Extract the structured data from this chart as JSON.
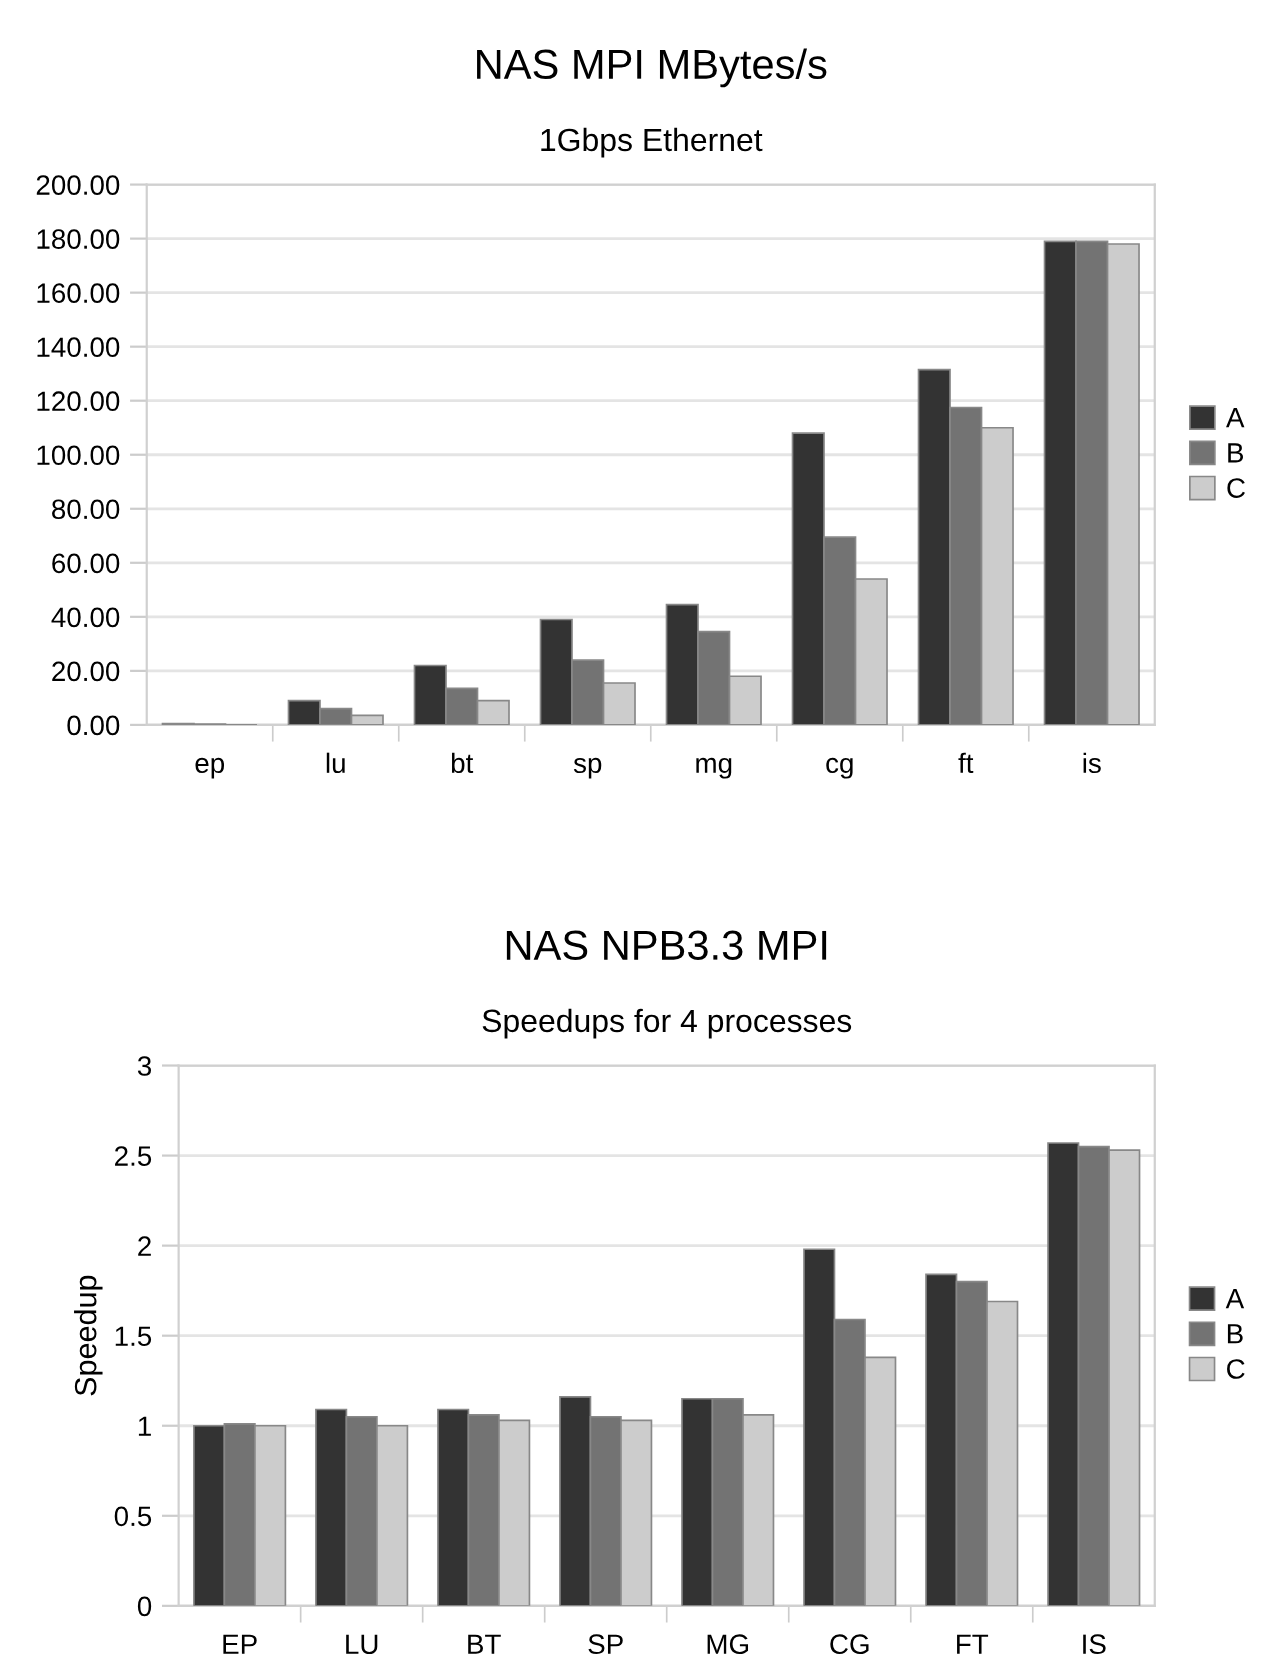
{
  "chart_data": [
    {
      "type": "bar",
      "title": "NAS MPI MBytes/s",
      "subtitle": "1Gbps Ethernet",
      "categories": [
        "ep",
        "lu",
        "bt",
        "sp",
        "mg",
        "cg",
        "ft",
        "is"
      ],
      "series": [
        {
          "name": "A",
          "color": "#333333",
          "values": [
            0.5,
            9,
            22,
            39,
            44.5,
            108,
            131.5,
            179
          ]
        },
        {
          "name": "B",
          "color": "#737373",
          "values": [
            0.3,
            6,
            13.5,
            24,
            34.5,
            69.5,
            117.5,
            179
          ]
        },
        {
          "name": "C",
          "color": "#cccccc",
          "values": [
            null,
            3.5,
            9,
            15.5,
            18,
            54,
            110,
            178
          ]
        }
      ],
      "ylim": [
        0,
        200
      ],
      "yticks": [
        {
          "value": 0,
          "label": "0.00"
        },
        {
          "value": 20,
          "label": "20.00"
        },
        {
          "value": 40,
          "label": "40.00"
        },
        {
          "value": 60,
          "label": "60.00"
        },
        {
          "value": 80,
          "label": "80.00"
        },
        {
          "value": 100,
          "label": "100.00"
        },
        {
          "value": 120,
          "label": "120.00"
        },
        {
          "value": 140,
          "label": "140.00"
        },
        {
          "value": 160,
          "label": "160.00"
        },
        {
          "value": 180,
          "label": "180.00"
        },
        {
          "value": 200,
          "label": "200.00"
        }
      ],
      "grid": "y",
      "legend": "right"
    },
    {
      "type": "bar",
      "title": "NAS NPB3.3 MPI",
      "subtitle": "Speedups for 4 processes",
      "ylabel": "Speedup",
      "categories": [
        "EP",
        "LU",
        "BT",
        "SP",
        "MG",
        "CG",
        "FT",
        "IS"
      ],
      "series": [
        {
          "name": "A",
          "color": "#333333",
          "values": [
            1.0,
            1.09,
            1.09,
            1.16,
            1.15,
            1.98,
            1.84,
            2.57
          ]
        },
        {
          "name": "B",
          "color": "#737373",
          "values": [
            1.01,
            1.05,
            1.06,
            1.05,
            1.15,
            1.59,
            1.8,
            2.55
          ]
        },
        {
          "name": "C",
          "color": "#cccccc",
          "values": [
            1.0,
            1.0,
            1.03,
            1.03,
            1.06,
            1.38,
            1.69,
            2.53
          ]
        }
      ],
      "ylim": [
        0,
        3
      ],
      "yticks": [
        0,
        0.5,
        1,
        1.5,
        2,
        2.5,
        3
      ],
      "grid": "y",
      "legend": "right"
    }
  ]
}
